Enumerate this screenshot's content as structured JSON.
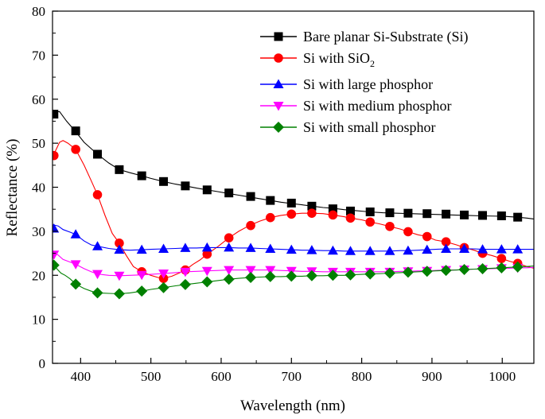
{
  "chart_data": {
    "type": "line",
    "title": "",
    "xlabel": "Wavelength (nm)",
    "ylabel": "Reflectance (%)",
    "xlim": [
      360,
      1045
    ],
    "ylim": [
      0,
      80
    ],
    "x_ticks": [
      400,
      500,
      600,
      700,
      800,
      900,
      1000
    ],
    "y_ticks": [
      0,
      10,
      20,
      30,
      40,
      50,
      60,
      70,
      80
    ],
    "grid": false,
    "legend_position": "top-right",
    "series": [
      {
        "name": "Bare planar Si-Substrate (Si)",
        "color": "#000000",
        "marker": "square",
        "x": [
          360,
          370,
          380,
          392,
          405,
          424,
          440,
          455,
          470,
          487,
          500,
          518,
          535,
          549,
          565,
          580,
          595,
          610,
          625,
          640,
          655,
          670,
          685,
          700,
          715,
          730,
          745,
          760,
          775,
          790,
          805,
          810,
          830,
          850,
          870,
          890,
          910,
          930,
          950,
          970,
          1000,
          1022,
          1035,
          1045
        ],
        "y": [
          57.0,
          57.2,
          55.0,
          52.8,
          50.2,
          47.5,
          45.5,
          44.0,
          43.3,
          42.6,
          42.0,
          41.3,
          40.7,
          40.3,
          39.8,
          39.4,
          39.0,
          38.6,
          38.2,
          37.8,
          37.4,
          37.0,
          36.6,
          36.3,
          36.0,
          35.7,
          35.4,
          35.2,
          34.9,
          34.7,
          34.5,
          34.4,
          34.2,
          34.1,
          34.0,
          33.9,
          33.8,
          33.7,
          33.6,
          33.5,
          33.4,
          33.2,
          33.0,
          32.8
        ],
        "markers_x": [
          362,
          393,
          424,
          455,
          487,
          518,
          549,
          580,
          611,
          642,
          670,
          700,
          729,
          759,
          784,
          812,
          840,
          866,
          893,
          920,
          946,
          972,
          999,
          1022
        ],
        "markers_y": [
          56.6,
          52.8,
          47.5,
          44.0,
          42.6,
          41.3,
          40.3,
          39.4,
          38.7,
          37.9,
          37.0,
          36.4,
          35.7,
          35.1,
          34.6,
          34.4,
          34.2,
          34.1,
          34.0,
          33.9,
          33.7,
          33.6,
          33.5,
          33.2
        ]
      },
      {
        "name": "Si with SiO2",
        "color": "#ff0000",
        "marker": "circle",
        "x": [
          360,
          365,
          370,
          375,
          382,
          393,
          405,
          415,
          424,
          435,
          445,
          455,
          465,
          475,
          487,
          500,
          510,
          518,
          530,
          540,
          549,
          560,
          570,
          580,
          595,
          611,
          625,
          640,
          655,
          670,
          685,
          700,
          715,
          729,
          745,
          759,
          775,
          784,
          800,
          812,
          825,
          840,
          855,
          866,
          880,
          893,
          905,
          920,
          935,
          946,
          960,
          972,
          985,
          999,
          1010,
          1022,
          1035,
          1045
        ],
        "y": [
          47.0,
          48.5,
          50.2,
          50.6,
          50.0,
          48.6,
          45.0,
          41.5,
          38.3,
          33.5,
          29.5,
          27.3,
          24.5,
          22.0,
          20.8,
          20.0,
          19.5,
          19.3,
          19.8,
          20.5,
          21.2,
          22.5,
          23.5,
          24.8,
          26.5,
          28.5,
          30.0,
          31.3,
          32.3,
          33.1,
          33.6,
          33.9,
          34.1,
          34.1,
          34.0,
          33.7,
          33.3,
          33.0,
          32.6,
          32.1,
          31.7,
          31.1,
          30.5,
          29.9,
          29.2,
          28.8,
          28.0,
          27.6,
          26.9,
          26.3,
          25.7,
          25.0,
          24.5,
          23.8,
          23.2,
          22.7,
          22.0,
          21.6
        ],
        "markers_x": [
          362,
          393,
          424,
          455,
          487,
          518,
          549,
          580,
          611,
          642,
          670,
          700,
          729,
          759,
          784,
          812,
          840,
          866,
          893,
          920,
          946,
          972,
          999,
          1022
        ],
        "markers_y": [
          47.2,
          48.6,
          38.3,
          27.3,
          20.8,
          19.3,
          21.2,
          24.8,
          28.5,
          31.3,
          33.1,
          33.9,
          34.1,
          33.7,
          33.0,
          32.1,
          31.1,
          29.9,
          28.8,
          27.6,
          26.3,
          25.0,
          23.8,
          22.7
        ]
      },
      {
        "name": "Si with large phosphor",
        "color": "#0000ff",
        "marker": "triangle-up",
        "x": [
          360,
          368,
          375,
          385,
          393,
          405,
          415,
          424,
          440,
          455,
          470,
          487,
          500,
          518,
          535,
          549,
          565,
          580,
          595,
          611,
          625,
          642,
          655,
          670,
          685,
          700,
          715,
          729,
          745,
          759,
          775,
          784,
          800,
          812,
          830,
          840,
          855,
          866,
          880,
          893,
          905,
          920,
          935,
          946,
          960,
          972,
          985,
          999,
          1010,
          1022,
          1035,
          1045
        ],
        "y": [
          31.5,
          31.2,
          30.4,
          29.8,
          29.3,
          27.8,
          26.9,
          26.6,
          26.1,
          25.8,
          25.7,
          25.8,
          25.9,
          26.0,
          26.1,
          26.2,
          26.2,
          26.3,
          26.3,
          26.3,
          26.2,
          26.2,
          26.1,
          26.0,
          25.9,
          25.8,
          25.7,
          25.7,
          25.6,
          25.6,
          25.5,
          25.5,
          25.5,
          25.5,
          25.5,
          25.5,
          25.6,
          25.6,
          25.7,
          25.8,
          25.9,
          26.0,
          26.0,
          26.0,
          26.0,
          25.9,
          25.9,
          25.9,
          25.9,
          25.9,
          25.9,
          25.9
        ],
        "markers_x": [
          362,
          393,
          424,
          455,
          487,
          518,
          549,
          580,
          611,
          642,
          670,
          700,
          729,
          759,
          784,
          812,
          840,
          866,
          893,
          920,
          946,
          972,
          999,
          1022
        ],
        "markers_y": [
          30.6,
          29.3,
          26.6,
          25.8,
          25.8,
          26.0,
          26.2,
          26.3,
          26.3,
          26.2,
          26.0,
          25.8,
          25.7,
          25.6,
          25.5,
          25.5,
          25.5,
          25.6,
          25.8,
          26.0,
          26.0,
          25.9,
          25.9,
          25.9
        ]
      },
      {
        "name": "Si with medium phosphor",
        "color": "#ff00ff",
        "marker": "triangle-down",
        "x": [
          360,
          368,
          375,
          385,
          393,
          405,
          415,
          424,
          440,
          455,
          470,
          487,
          500,
          518,
          535,
          549,
          565,
          580,
          595,
          611,
          625,
          642,
          655,
          670,
          685,
          700,
          715,
          729,
          745,
          759,
          775,
          784,
          800,
          812,
          830,
          840,
          855,
          866,
          880,
          893,
          905,
          920,
          935,
          946,
          960,
          972,
          985,
          999,
          1010,
          1022,
          1035,
          1045
        ],
        "y": [
          25.3,
          24.6,
          23.6,
          23.0,
          22.5,
          21.5,
          20.8,
          20.3,
          20.0,
          19.9,
          20.0,
          20.1,
          20.2,
          20.4,
          20.6,
          20.8,
          20.9,
          21.0,
          21.1,
          21.2,
          21.2,
          21.2,
          21.2,
          21.2,
          21.1,
          21.0,
          20.9,
          20.9,
          20.8,
          20.8,
          20.8,
          20.8,
          20.8,
          20.8,
          20.8,
          20.8,
          20.9,
          20.9,
          21.0,
          21.0,
          21.1,
          21.2,
          21.2,
          21.3,
          21.4,
          21.4,
          21.5,
          21.6,
          21.6,
          21.7,
          21.7,
          21.8
        ],
        "markers_x": [
          362,
          393,
          424,
          455,
          487,
          518,
          549,
          580,
          611,
          642,
          670,
          700,
          729,
          759,
          784,
          812,
          840,
          866,
          893,
          920,
          946,
          972,
          999,
          1022
        ],
        "markers_y": [
          24.7,
          22.5,
          20.3,
          19.9,
          20.1,
          20.4,
          20.8,
          21.0,
          21.2,
          21.2,
          21.2,
          21.0,
          20.9,
          20.8,
          20.8,
          20.8,
          20.8,
          20.9,
          21.0,
          21.2,
          21.3,
          21.4,
          21.6,
          21.7
        ]
      },
      {
        "name": "Si with small phosphor",
        "color": "#008000",
        "marker": "diamond",
        "x": [
          360,
          366,
          372,
          378,
          385,
          393,
          405,
          415,
          424,
          440,
          455,
          470,
          487,
          500,
          518,
          535,
          549,
          565,
          580,
          595,
          611,
          625,
          642,
          655,
          670,
          685,
          700,
          715,
          729,
          745,
          759,
          775,
          784,
          800,
          812,
          830,
          840,
          855,
          866,
          880,
          893,
          905,
          920,
          935,
          946,
          960,
          972,
          985,
          999,
          1010,
          1022,
          1035,
          1045
        ],
        "y": [
          23.0,
          21.5,
          20.5,
          20.0,
          19.2,
          18.0,
          17.0,
          16.4,
          16.0,
          15.9,
          15.8,
          16.0,
          16.4,
          16.8,
          17.2,
          17.6,
          17.9,
          18.2,
          18.5,
          18.8,
          19.1,
          19.3,
          19.5,
          19.6,
          19.7,
          19.7,
          19.8,
          19.8,
          19.9,
          19.9,
          20.0,
          20.0,
          20.1,
          20.2,
          20.3,
          20.4,
          20.5,
          20.6,
          20.7,
          20.8,
          20.9,
          21.0,
          21.1,
          21.2,
          21.3,
          21.4,
          21.5,
          21.6,
          21.7,
          21.8,
          21.9,
          22.0,
          22.1
        ],
        "markers_x": [
          362,
          393,
          424,
          455,
          487,
          518,
          549,
          580,
          611,
          642,
          670,
          700,
          729,
          759,
          784,
          812,
          840,
          866,
          893,
          920,
          946,
          972,
          999,
          1022
        ],
        "markers_y": [
          22.3,
          18.0,
          16.0,
          15.8,
          16.4,
          17.2,
          17.9,
          18.5,
          19.1,
          19.5,
          19.7,
          19.8,
          19.9,
          20.0,
          20.1,
          20.3,
          20.5,
          20.7,
          20.9,
          21.1,
          21.3,
          21.5,
          21.7,
          21.9
        ]
      }
    ]
  },
  "legend": {
    "items": [
      {
        "main": "Bare planar Si-Substrate (Si)",
        "sub": "",
        "tail": ""
      },
      {
        "main": "Si with SiO",
        "sub": "2",
        "tail": ""
      },
      {
        "main": "Si with large phosphor",
        "sub": "",
        "tail": ""
      },
      {
        "main": "Si with medium phosphor",
        "sub": "",
        "tail": ""
      },
      {
        "main": "Si with small phosphor",
        "sub": "",
        "tail": ""
      }
    ]
  }
}
